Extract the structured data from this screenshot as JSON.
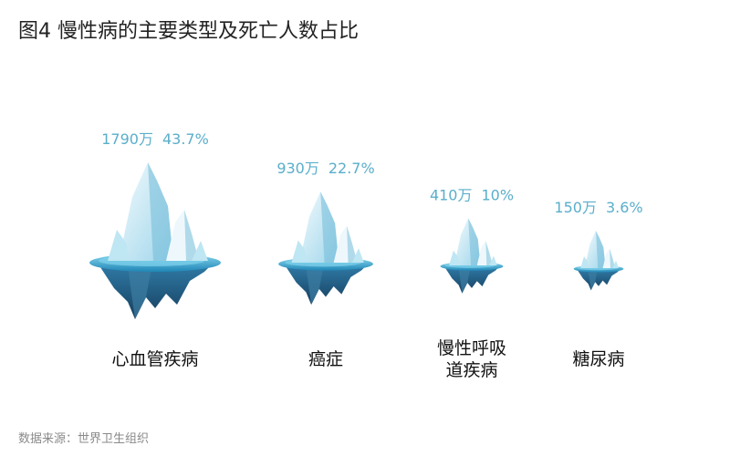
{
  "title": "图4 慢性病的主要类型及死亡人数占比",
  "source": "数据来源：世界卫生组织",
  "colors": {
    "label": "#5aaecb",
    "water_light": "#7fd3ec",
    "water_dark": "#1f86b6",
    "ice_light": "#eef8fc",
    "ice_mid": "#bfe6f3",
    "ice_dark": "#72bcd8",
    "under_dark": "#1a4f72",
    "under_mid": "#3d7ea3"
  },
  "chart_data": {
    "type": "pictorial",
    "categories": [
      {
        "lines": [
          "心血管疾病"
        ],
        "value_label": "1790万",
        "share_label": "43.7%"
      },
      {
        "lines": [
          "癌症"
        ],
        "value_label": "930万",
        "share_label": "22.7%"
      },
      {
        "lines": [
          "慢性呼吸",
          "道疾病"
        ],
        "value_label": "410万",
        "share_label": "10%"
      },
      {
        "lines": [
          "糖尿病"
        ],
        "value_label": "150万",
        "share_label": "3.6%"
      }
    ],
    "values": [
      1790,
      930,
      410,
      150
    ],
    "unit": "万",
    "shares": [
      43.7,
      22.7,
      10,
      3.6
    ]
  }
}
